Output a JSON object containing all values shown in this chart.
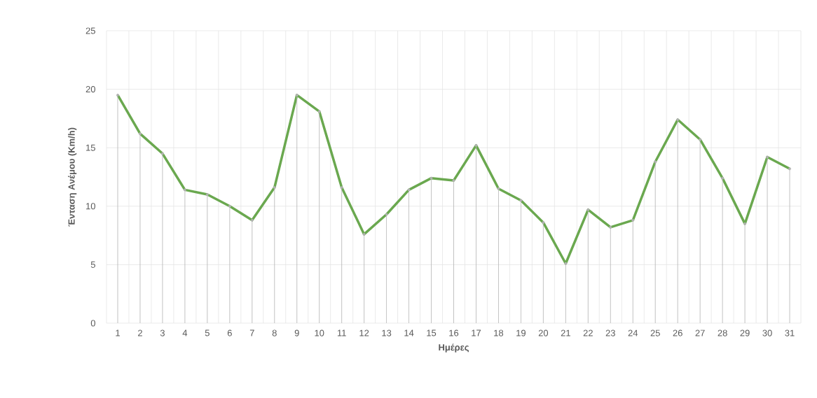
{
  "chart_data": {
    "type": "line",
    "xlabel": "Ημέρες",
    "ylabel": "Ένταση  Ανέμου (Km/h)",
    "categories": [
      "1",
      "2",
      "3",
      "4",
      "5",
      "6",
      "7",
      "8",
      "9",
      "10",
      "11",
      "12",
      "13",
      "14",
      "15",
      "16",
      "17",
      "18",
      "19",
      "20",
      "21",
      "22",
      "23",
      "24",
      "25",
      "26",
      "27",
      "28",
      "29",
      "30",
      "31"
    ],
    "series": [
      {
        "type": "lollipop",
        "marker": "circle",
        "color": "#b2b2b2",
        "values": [
          19.5,
          16.2,
          14.5,
          11.4,
          11.0,
          10.0,
          8.8,
          11.6,
          19.5,
          18.1,
          11.6,
          7.6,
          9.3,
          11.4,
          12.4,
          12.2,
          15.2,
          11.5,
          10.5,
          8.6,
          5.1,
          9.7,
          8.2,
          8.8,
          13.8,
          17.4,
          15.7,
          12.4,
          8.5,
          14.2,
          13.2
        ]
      },
      {
        "color": "#6aa84f",
        "values": [
          19.5,
          16.2,
          14.5,
          11.4,
          11.0,
          10.0,
          8.8,
          11.6,
          19.5,
          18.1,
          11.6,
          7.6,
          9.3,
          11.4,
          12.4,
          12.2,
          15.2,
          11.5,
          10.5,
          8.6,
          5.1,
          9.7,
          8.2,
          8.8,
          13.8,
          17.4,
          15.7,
          12.4,
          8.5,
          14.2,
          13.2
        ]
      }
    ],
    "ylim": [
      0,
      25
    ],
    "yticks": [
      0,
      5,
      10,
      15,
      20,
      25
    ],
    "grid": true,
    "marker": "none",
    "line_style": "solid",
    "legend": false
  }
}
